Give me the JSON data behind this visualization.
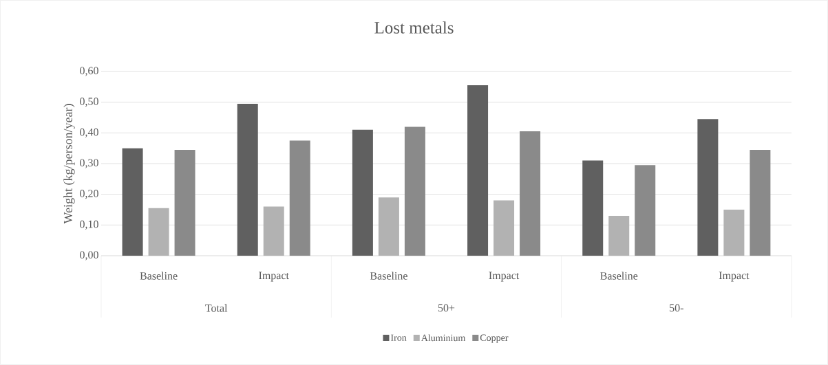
{
  "chart_data": {
    "type": "bar",
    "title": "Lost metals",
    "ylabel": "Weight (kg/person/year)",
    "categories": [
      "Baseline",
      "Impact",
      "Baseline",
      "Impact",
      "Baseline",
      "Impact"
    ],
    "series": [
      {
        "name": "Iron",
        "color": "#606060",
        "values": [
          0.35,
          0.495,
          0.41,
          0.555,
          0.31,
          0.445
        ]
      },
      {
        "name": "Aluminium",
        "color": "#b2b2b2",
        "values": [
          0.155,
          0.16,
          0.19,
          0.18,
          0.13,
          0.15
        ]
      },
      {
        "name": "Copper",
        "color": "#8a8a8a",
        "values": [
          0.345,
          0.375,
          0.42,
          0.405,
          0.295,
          0.345
        ]
      }
    ],
    "ylim": [
      0,
      0.6
    ],
    "yticks": [
      {
        "value": 0,
        "label": "0,00"
      },
      {
        "value": 0.1,
        "label": "0,10"
      },
      {
        "value": 0.2,
        "label": "0,20"
      },
      {
        "value": 0.3,
        "label": "0,30"
      },
      {
        "value": 0.4,
        "label": "0,40"
      },
      {
        "value": 0.5,
        "label": "0,50"
      },
      {
        "value": 0.6,
        "label": "0,60"
      }
    ],
    "grid": "y",
    "legend": "bottom",
    "annotations": [
      "Total",
      "50+",
      "50-"
    ]
  }
}
